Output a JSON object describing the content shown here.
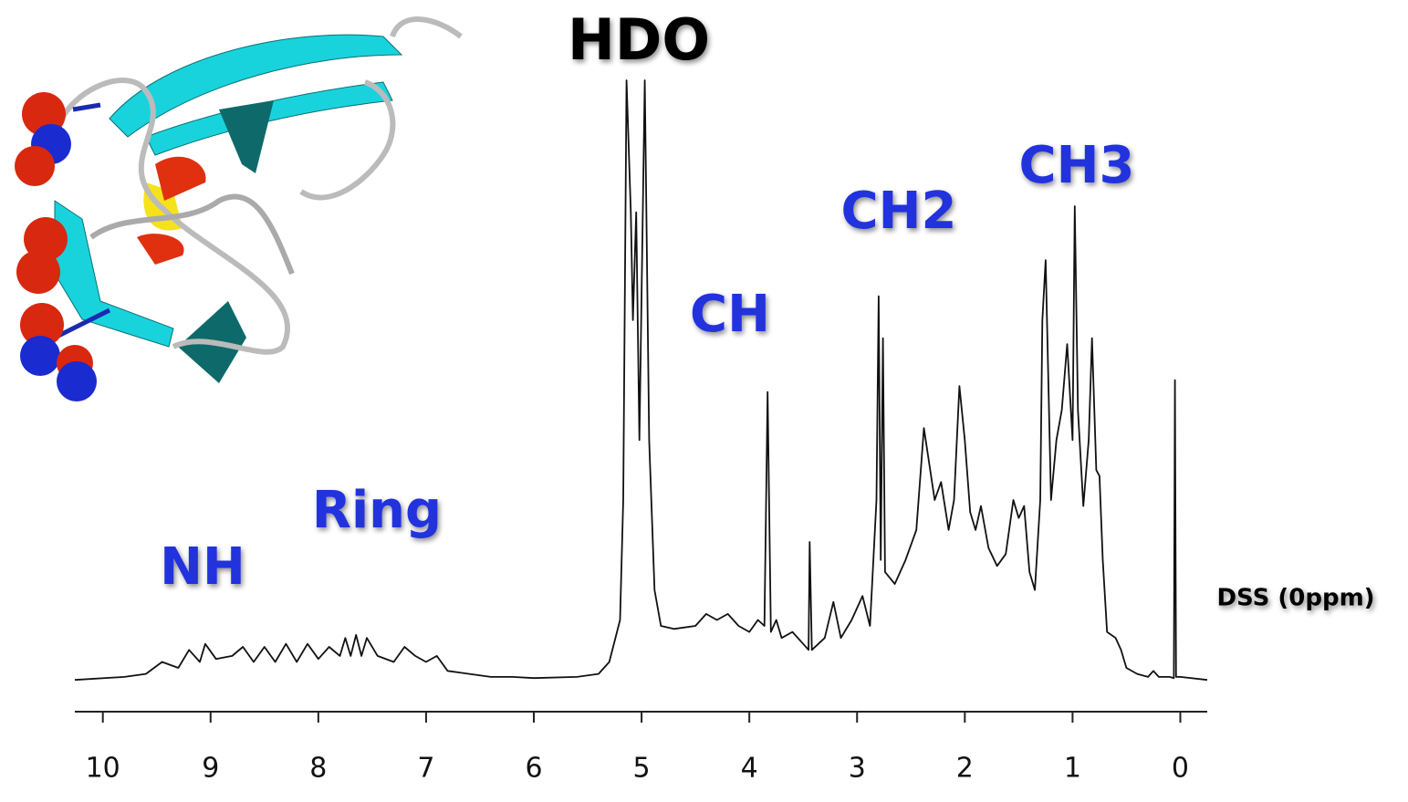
{
  "chart_data": {
    "type": "line",
    "x": [
      10.26,
      9.8,
      9.6,
      9.45,
      9.3,
      9.2,
      9.1,
      9.05,
      8.95,
      8.8,
      8.7,
      8.6,
      8.5,
      8.4,
      8.3,
      8.2,
      8.1,
      8.0,
      7.9,
      7.8,
      7.75,
      7.7,
      7.65,
      7.6,
      7.55,
      7.45,
      7.3,
      7.2,
      7.1,
      7.0,
      6.9,
      6.8,
      6.6,
      6.4,
      6.2,
      6.0,
      5.6,
      5.4,
      5.3,
      5.2,
      5.17,
      5.14,
      5.1,
      5.08,
      5.05,
      5.02,
      4.97,
      4.93,
      4.88,
      4.82,
      4.7,
      4.5,
      4.4,
      4.3,
      4.2,
      4.1,
      4.0,
      3.92,
      3.86,
      3.83,
      3.8,
      3.75,
      3.7,
      3.6,
      3.5,
      3.45,
      3.44,
      3.42,
      3.3,
      3.22,
      3.15,
      3.05,
      2.95,
      2.88,
      2.82,
      2.8,
      2.78,
      2.76,
      2.74,
      2.65,
      2.55,
      2.45,
      2.38,
      2.33,
      2.28,
      2.22,
      2.15,
      2.1,
      2.05,
      2.0,
      1.95,
      1.9,
      1.85,
      1.78,
      1.7,
      1.62,
      1.55,
      1.5,
      1.45,
      1.4,
      1.35,
      1.3,
      1.28,
      1.25,
      1.2,
      1.15,
      1.1,
      1.05,
      1.0,
      0.98,
      0.95,
      0.9,
      0.85,
      0.82,
      0.78,
      0.75,
      0.72,
      0.68,
      0.6,
      0.55,
      0.5,
      0.4,
      0.3,
      0.25,
      0.2,
      0.1,
      0.06,
      0.05,
      0.04,
      0.0,
      -0.25
    ],
    "series": [
      {
        "color": "#111111",
        "values": [
          0,
          0.5,
          1,
          3,
          2,
          5,
          3,
          6,
          3.5,
          4,
          5.5,
          3,
          5.5,
          3,
          6,
          3,
          6,
          3.5,
          5.5,
          4,
          7,
          4,
          7.5,
          4,
          7,
          4,
          3,
          5.5,
          4,
          3,
          4,
          1.5,
          1,
          0.5,
          0.5,
          0.3,
          0.5,
          1,
          3,
          10,
          30,
          100,
          78,
          60,
          78,
          40,
          100,
          40,
          15,
          9,
          8.5,
          9,
          11,
          10,
          11,
          9,
          8,
          10,
          9,
          48,
          8,
          10,
          7,
          8,
          6,
          5,
          23,
          5,
          7,
          13,
          7,
          10,
          14,
          9,
          30,
          64,
          20,
          57,
          18,
          16,
          20,
          25,
          42,
          36,
          30,
          33,
          25,
          30,
          49,
          40,
          28,
          25,
          29,
          22,
          19,
          21,
          30,
          27,
          29,
          18,
          15,
          30,
          60,
          70,
          30,
          40,
          45,
          56,
          40,
          79,
          45,
          29,
          40,
          57,
          35,
          34,
          20,
          8,
          7,
          5,
          2,
          1,
          0.5,
          1.5,
          0.5,
          0.5,
          0.3,
          50,
          0.5,
          0.5,
          0
        ]
      }
    ],
    "xlim": [
      10.26,
      -0.25
    ],
    "ylim": [
      -5.3,
      100
    ],
    "xticks": [
      10,
      9,
      8,
      7,
      6,
      5,
      4,
      3,
      2,
      1,
      0
    ],
    "annotations": [
      {
        "text": "HDO",
        "color": "#000000"
      },
      {
        "text": "NH",
        "color": "#2233dd"
      },
      {
        "text": "Ring",
        "color": "#2233dd"
      },
      {
        "text": "CH",
        "color": "#2233dd"
      },
      {
        "text": "CH2",
        "color": "#2233dd"
      },
      {
        "text": "CH3",
        "color": "#2233dd"
      },
      {
        "text": "DSS (0ppm)",
        "color": "#000000"
      }
    ]
  }
}
